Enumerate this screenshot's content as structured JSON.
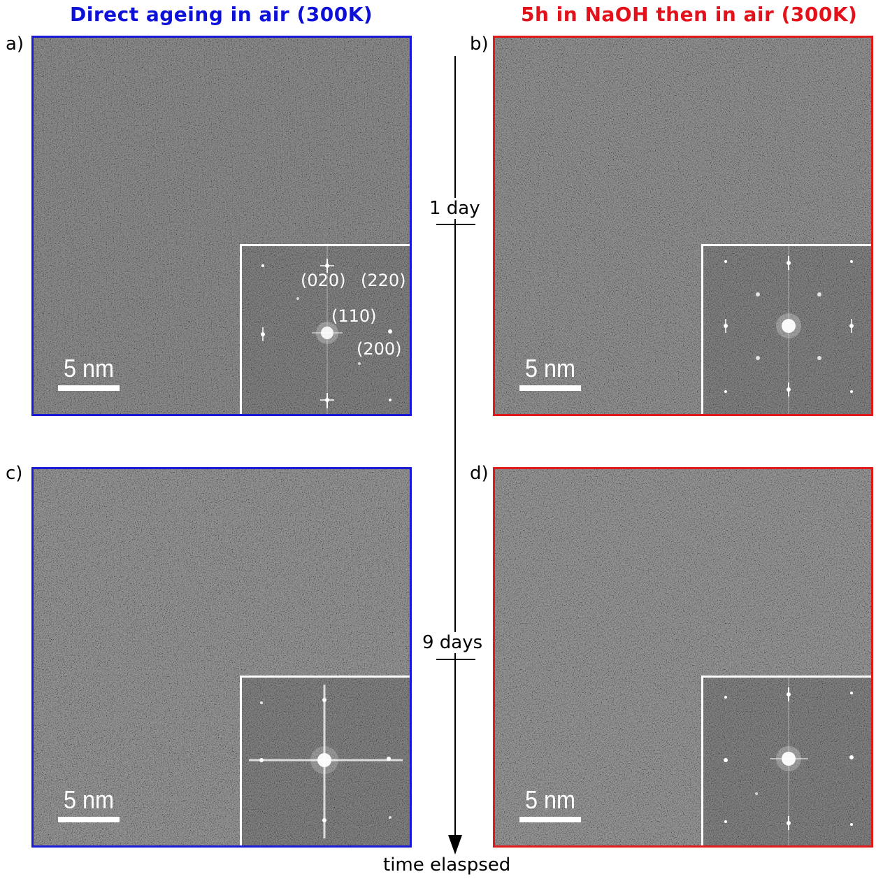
{
  "headings": {
    "left": {
      "text": "Direct ageing in air (300K)",
      "color": "#0d10d8"
    },
    "right": {
      "text": "5h in NaOH then in air (300K)",
      "color": "#e3121a"
    }
  },
  "panels": [
    {
      "label": "a)",
      "scale": "5 nm",
      "border": "#1a1ad6",
      "indices": [
        "(020)",
        "(220)",
        "(110)",
        "(200)"
      ]
    },
    {
      "label": "b)",
      "scale": "5 nm",
      "border": "#e01a1a"
    },
    {
      "label": "c)",
      "scale": "5 nm",
      "border": "#1a1ad6"
    },
    {
      "label": "d)",
      "scale": "5 nm",
      "border": "#e01a1a"
    }
  ],
  "timeline": {
    "mark1": "1 day",
    "mark2": "9 days",
    "axis_label": "time elaspsed"
  }
}
